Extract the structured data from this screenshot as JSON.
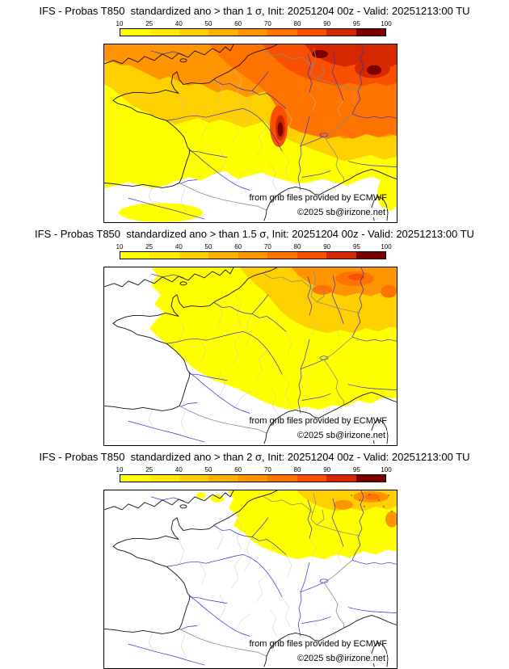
{
  "panels": [
    {
      "title": "IFS - Probas T850  standardized ano > than 1 σ, Init: 20251204 00z - Valid: 20251213:00 TU",
      "credit": "from grib files provided by ECMWF",
      "copyright": "©2025 sb@irizone.net"
    },
    {
      "title": "IFS - Probas T850  standardized ano > than 1.5 σ, Init: 20251204 00z - Valid: 20251213:00 TU",
      "credit": "from grib files provided by ECMWF",
      "copyright": "©2025 sb@irizone.net"
    },
    {
      "title": "IFS - Probas T850  standardized ano > than 2 σ, Init: 20251204 00z - Valid: 20251213:00 TU",
      "credit": "from grib files provided by ECMWF",
      "copyright": "©2025 sb@irizone.net"
    }
  ],
  "colorbar": {
    "ticks": [
      "10",
      "25",
      "40",
      "50",
      "60",
      "70",
      "80",
      "90",
      "95",
      "100"
    ],
    "colors": [
      "#ffff00",
      "#ffeb00",
      "#ffd000",
      "#ffb000",
      "#ff9400",
      "#ff7300",
      "#f95000",
      "#d62800",
      "#7a0000"
    ]
  },
  "map_colors": {
    "coast": "#111111",
    "river": "#2b2bd4",
    "border": "#8a8a8a",
    "minor_border": "#c4c4c4"
  }
}
